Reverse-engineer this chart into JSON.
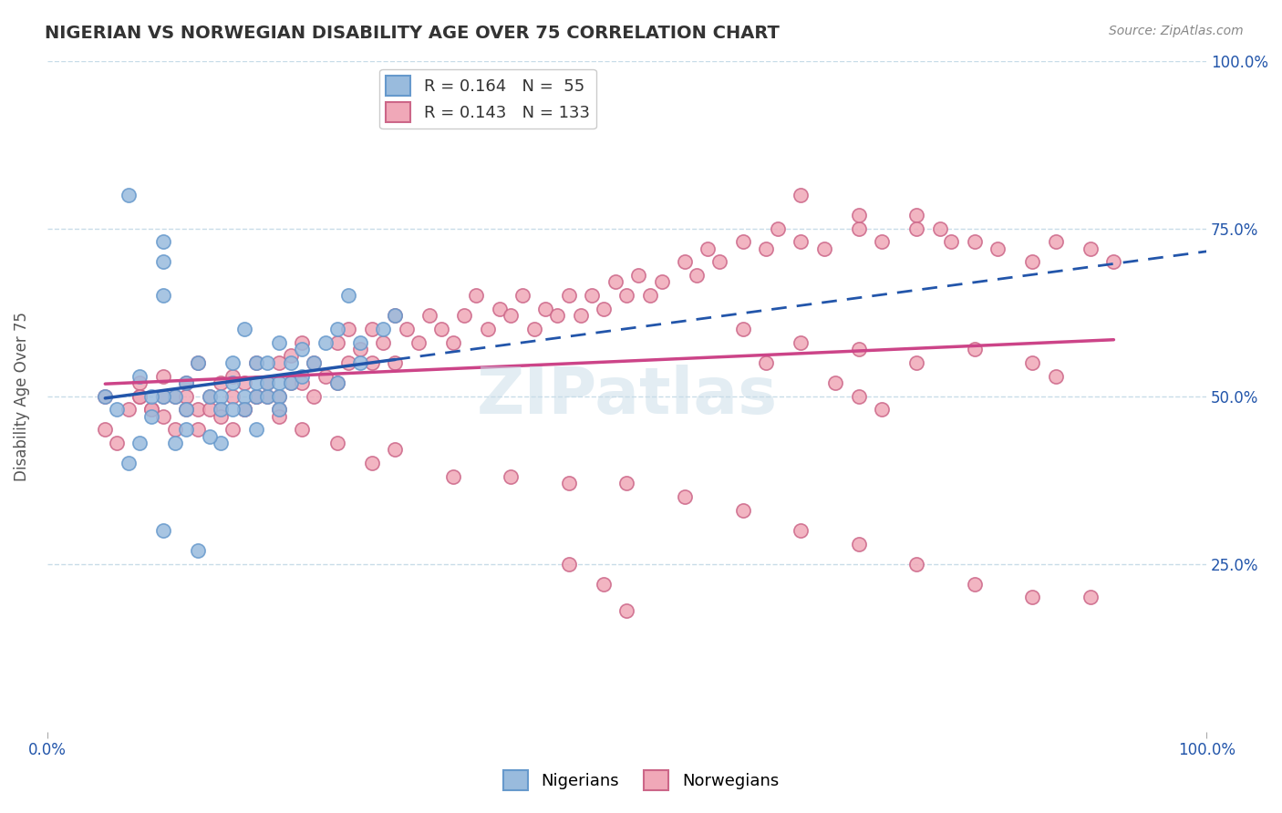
{
  "title": "NIGERIAN VS NORWEGIAN DISABILITY AGE OVER 75 CORRELATION CHART",
  "source_text": "Source: ZipAtlas.com",
  "ylabel": "Disability Age Over 75",
  "xlabel": "",
  "xlim": [
    0,
    100
  ],
  "ylim": [
    0,
    100
  ],
  "x_tick_labels": [
    "0.0%",
    "100.0%"
  ],
  "y_tick_labels_right": [
    "25.0%",
    "50.0%",
    "75.0%",
    "100.0%"
  ],
  "y_tick_positions_right": [
    25,
    50,
    75,
    100
  ],
  "grid_color": "#c8dce8",
  "background_color": "#ffffff",
  "watermark": "ZIPatlas",
  "legend_items": [
    {
      "label": "R = 0.164   N =  55",
      "color": "#a8c8f0"
    },
    {
      "label": "R = 0.143   N = 133",
      "color": "#f0a8b8"
    }
  ],
  "nigerian_color": "#6699cc",
  "nigerian_color_fill": "#99bbdd",
  "norwegian_color": "#cc6688",
  "norwegian_color_fill": "#f0a8b8",
  "nigerian_line_color": "#2255aa",
  "norwegian_line_color": "#cc4488",
  "nigerian_R": 0.164,
  "nigerian_N": 55,
  "norwegian_R": 0.143,
  "norwegian_N": 133,
  "nigerian_points_x": [
    5,
    7,
    10,
    10,
    10,
    11,
    12,
    12,
    13,
    14,
    15,
    15,
    16,
    16,
    17,
    17,
    17,
    18,
    18,
    18,
    19,
    19,
    19,
    20,
    20,
    20,
    20,
    21,
    21,
    22,
    22,
    23,
    24,
    25,
    25,
    26,
    27,
    27,
    29,
    30,
    7,
    8,
    9,
    10,
    11,
    15,
    16,
    18,
    10,
    13,
    12,
    14,
    8,
    9,
    6
  ],
  "nigerian_points_y": [
    50,
    80,
    73,
    70,
    65,
    50,
    48,
    52,
    55,
    50,
    50,
    48,
    52,
    55,
    60,
    50,
    48,
    50,
    55,
    52,
    50,
    55,
    52,
    58,
    52,
    50,
    48,
    55,
    52,
    53,
    57,
    55,
    58,
    60,
    52,
    65,
    55,
    58,
    60,
    62,
    40,
    43,
    47,
    50,
    43,
    43,
    48,
    45,
    30,
    27,
    45,
    44,
    53,
    50,
    48
  ],
  "norwegian_points_x": [
    5,
    7,
    8,
    8,
    9,
    10,
    10,
    11,
    12,
    12,
    13,
    13,
    14,
    15,
    15,
    16,
    16,
    17,
    17,
    18,
    18,
    19,
    19,
    20,
    20,
    20,
    21,
    21,
    22,
    22,
    23,
    23,
    24,
    25,
    25,
    26,
    26,
    27,
    28,
    28,
    29,
    30,
    30,
    31,
    32,
    33,
    34,
    35,
    36,
    37,
    38,
    39,
    40,
    41,
    42,
    43,
    44,
    45,
    46,
    47,
    48,
    49,
    50,
    51,
    52,
    53,
    55,
    56,
    57,
    58,
    60,
    62,
    63,
    65,
    67,
    70,
    72,
    75,
    77,
    80,
    5,
    6,
    8,
    9,
    10,
    11,
    12,
    13,
    14,
    15,
    16,
    17,
    18,
    20,
    22,
    25,
    28,
    30,
    35,
    40,
    45,
    50,
    55,
    60,
    65,
    70,
    75,
    80,
    85,
    90,
    60,
    65,
    70,
    75,
    80,
    85,
    87,
    65,
    70,
    75,
    78,
    82,
    85,
    87,
    90,
    92,
    62,
    68,
    70,
    72,
    45,
    48,
    50
  ],
  "norwegian_points_y": [
    50,
    48,
    50,
    52,
    48,
    50,
    53,
    50,
    50,
    52,
    48,
    55,
    50,
    52,
    48,
    50,
    53,
    52,
    48,
    50,
    55,
    50,
    52,
    55,
    50,
    48,
    52,
    56,
    58,
    52,
    55,
    50,
    53,
    58,
    52,
    55,
    60,
    57,
    60,
    55,
    58,
    62,
    55,
    60,
    58,
    62,
    60,
    58,
    62,
    65,
    60,
    63,
    62,
    65,
    60,
    63,
    62,
    65,
    62,
    65,
    63,
    67,
    65,
    68,
    65,
    67,
    70,
    68,
    72,
    70,
    73,
    72,
    75,
    73,
    72,
    75,
    73,
    77,
    75,
    73,
    45,
    43,
    50,
    48,
    47,
    45,
    48,
    45,
    48,
    47,
    45,
    48,
    50,
    47,
    45,
    43,
    40,
    42,
    38,
    38,
    37,
    37,
    35,
    33,
    30,
    28,
    25,
    22,
    20,
    20,
    60,
    58,
    57,
    55,
    57,
    55,
    53,
    80,
    77,
    75,
    73,
    72,
    70,
    73,
    72,
    70,
    55,
    52,
    50,
    48,
    25,
    22,
    18
  ]
}
